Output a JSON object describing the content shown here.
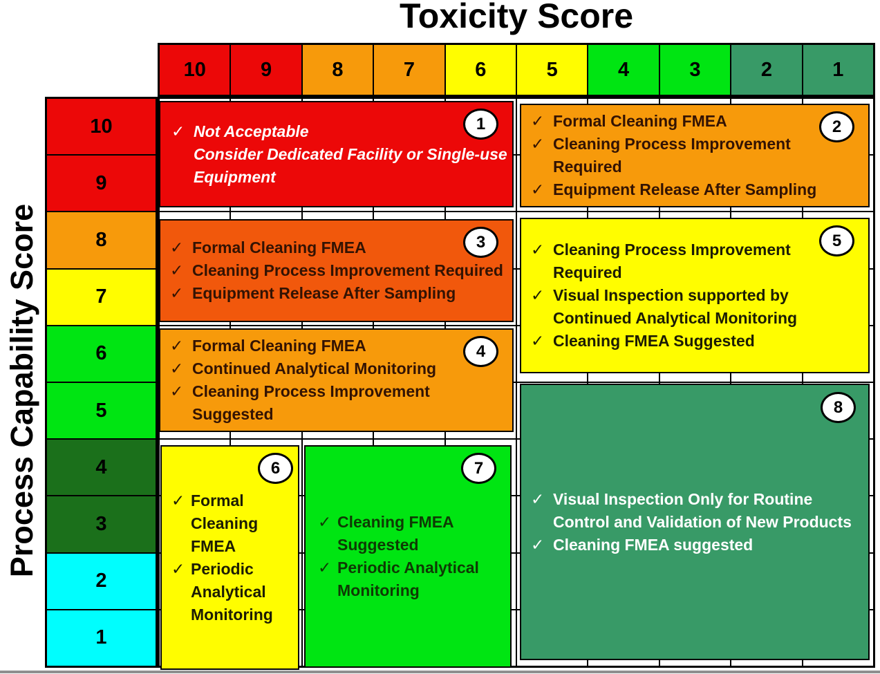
{
  "title": "Toxicity Score",
  "y_axis_label": "Process Capability Score",
  "check_icon": "✓",
  "palette": {
    "red": "#EC0808",
    "orange": "#F79A0B",
    "orange_red": "#F1580C",
    "yellow": "#FFFD00",
    "bright_green": "#00E512",
    "dark_green": "#1B701B",
    "cyan": "#00FEFE",
    "sea_green": "#389A67",
    "grid_line": "#000000",
    "background": "#FFFFFF",
    "badge_bg": "#FFFFFF",
    "badge_border": "#000000"
  },
  "toxicity_columns": [
    {
      "label": "10",
      "color": "red"
    },
    {
      "label": "9",
      "color": "red"
    },
    {
      "label": "8",
      "color": "orange"
    },
    {
      "label": "7",
      "color": "orange"
    },
    {
      "label": "6",
      "color": "yellow"
    },
    {
      "label": "5",
      "color": "yellow"
    },
    {
      "label": "4",
      "color": "bright_green"
    },
    {
      "label": "3",
      "color": "bright_green"
    },
    {
      "label": "2",
      "color": "sea_green"
    },
    {
      "label": "1",
      "color": "sea_green"
    }
  ],
  "capability_rows": [
    {
      "label": "10",
      "color": "red"
    },
    {
      "label": "9",
      "color": "red"
    },
    {
      "label": "8",
      "color": "orange"
    },
    {
      "label": "7",
      "color": "yellow"
    },
    {
      "label": "6",
      "color": "bright_green"
    },
    {
      "label": "5",
      "color": "bright_green"
    },
    {
      "label": "4",
      "color": "dark_green"
    },
    {
      "label": "3",
      "color": "dark_green"
    },
    {
      "label": "2",
      "color": "cyan"
    },
    {
      "label": "1",
      "color": "cyan"
    }
  ],
  "zones": [
    {
      "number": "1",
      "color": "red",
      "text_color": "#FFFFFF",
      "italic": true,
      "items": [
        {
          "check": true,
          "text": "Not Acceptable"
        },
        {
          "check": false,
          "text": "Consider Dedicated Facility or Single-use Equipment"
        }
      ]
    },
    {
      "number": "2",
      "color": "orange",
      "text_color": "#331303",
      "italic": false,
      "items": [
        {
          "check": true,
          "text": "Formal Cleaning FMEA"
        },
        {
          "check": true,
          "text": "Cleaning Process Improvement Required"
        },
        {
          "check": true,
          "text": "Equipment Release After Sampling"
        }
      ]
    },
    {
      "number": "3",
      "color": "orange_red",
      "text_color": "#331303",
      "italic": false,
      "items": [
        {
          "check": true,
          "text": "Formal Cleaning FMEA"
        },
        {
          "check": true,
          "text": "Cleaning Process Improvement Required"
        },
        {
          "check": true,
          "text": "Equipment Release After Sampling"
        }
      ]
    },
    {
      "number": "4",
      "color": "orange",
      "text_color": "#331303",
      "italic": false,
      "items": [
        {
          "check": true,
          "text": "Formal Cleaning FMEA"
        },
        {
          "check": true,
          "text": "Continued Analytical Monitoring"
        },
        {
          "check": true,
          "text": "Cleaning Process Improvement Suggested"
        }
      ]
    },
    {
      "number": "5",
      "color": "yellow",
      "text_color": "#1C1C04",
      "italic": false,
      "items": [
        {
          "check": true,
          "text": "Cleaning Process Improvement Required"
        },
        {
          "check": true,
          "text": "Visual Inspection supported by Continued Analytical Monitoring"
        },
        {
          "check": true,
          "text": "Cleaning FMEA Suggested"
        }
      ]
    },
    {
      "number": "6",
      "color": "yellow",
      "text_color": "#1C1C04",
      "italic": false,
      "items": [
        {
          "check": true,
          "text": "Formal Cleaning FMEA"
        },
        {
          "check": true,
          "text": "Periodic Analytical Monitoring"
        }
      ]
    },
    {
      "number": "7",
      "color": "bright_green",
      "text_color": "#0E3A04",
      "italic": false,
      "items": [
        {
          "check": true,
          "text": "Cleaning FMEA Suggested"
        },
        {
          "check": true,
          "text": "Periodic Analytical Monitoring"
        }
      ]
    },
    {
      "number": "8",
      "color": "sea_green",
      "text_color": "#FFFFFF",
      "italic": false,
      "items": [
        {
          "check": true,
          "text": "Visual Inspection Only for Routine Control and Validation of New Products"
        },
        {
          "check": true,
          "text": "Cleaning FMEA suggested"
        }
      ]
    }
  ]
}
